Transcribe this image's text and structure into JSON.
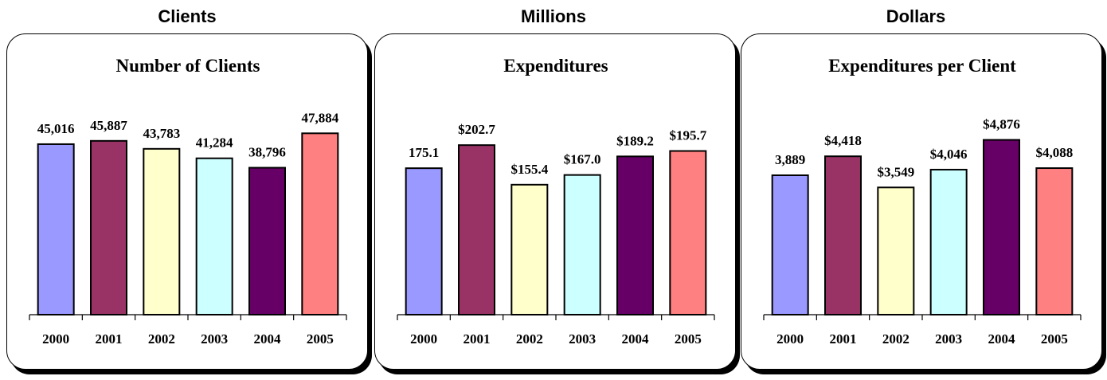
{
  "headers": [
    "Clients",
    "Millions",
    "Dollars"
  ],
  "chart_data": [
    {
      "type": "bar",
      "title": "Number of Clients",
      "categories": [
        "2000",
        "2001",
        "2002",
        "2003",
        "2004",
        "2005"
      ],
      "values": [
        45016,
        45887,
        43783,
        41284,
        38796,
        47884
      ],
      "labels": [
        "45,016",
        "45,887",
        "43,783",
        "41,284",
        "38,796",
        "47,884"
      ],
      "ylim": [
        0,
        53000
      ],
      "colors": [
        "#9999ff",
        "#993366",
        "#ffffcc",
        "#ccffff",
        "#660066",
        "#ff8080"
      ]
    },
    {
      "type": "bar",
      "title": "Expenditures",
      "categories": [
        "2000",
        "2001",
        "2002",
        "2003",
        "2004",
        "2005"
      ],
      "values": [
        175.1,
        202.7,
        155.4,
        167.0,
        189.2,
        195.7
      ],
      "labels": [
        "175.1",
        "$202.7",
        "$155.4",
        "$167.0",
        "$189.2",
        "$195.7"
      ],
      "ylim": [
        0,
        240
      ],
      "colors": [
        "#9999ff",
        "#993366",
        "#ffffcc",
        "#ccffff",
        "#660066",
        "#ff8080"
      ]
    },
    {
      "type": "bar",
      "title": "Expenditures per Client",
      "categories": [
        "2000",
        "2001",
        "2002",
        "2003",
        "2004",
        "2005"
      ],
      "values": [
        3889,
        4418,
        3549,
        4046,
        4876,
        4088
      ],
      "labels": [
        "3,889",
        "$4,418",
        "$3,549",
        "$4,046",
        "$4,876",
        "$4,088"
      ],
      "ylim": [
        0,
        5600
      ],
      "colors": [
        "#9999ff",
        "#993366",
        "#ffffcc",
        "#ccffff",
        "#660066",
        "#ff8080"
      ]
    }
  ]
}
